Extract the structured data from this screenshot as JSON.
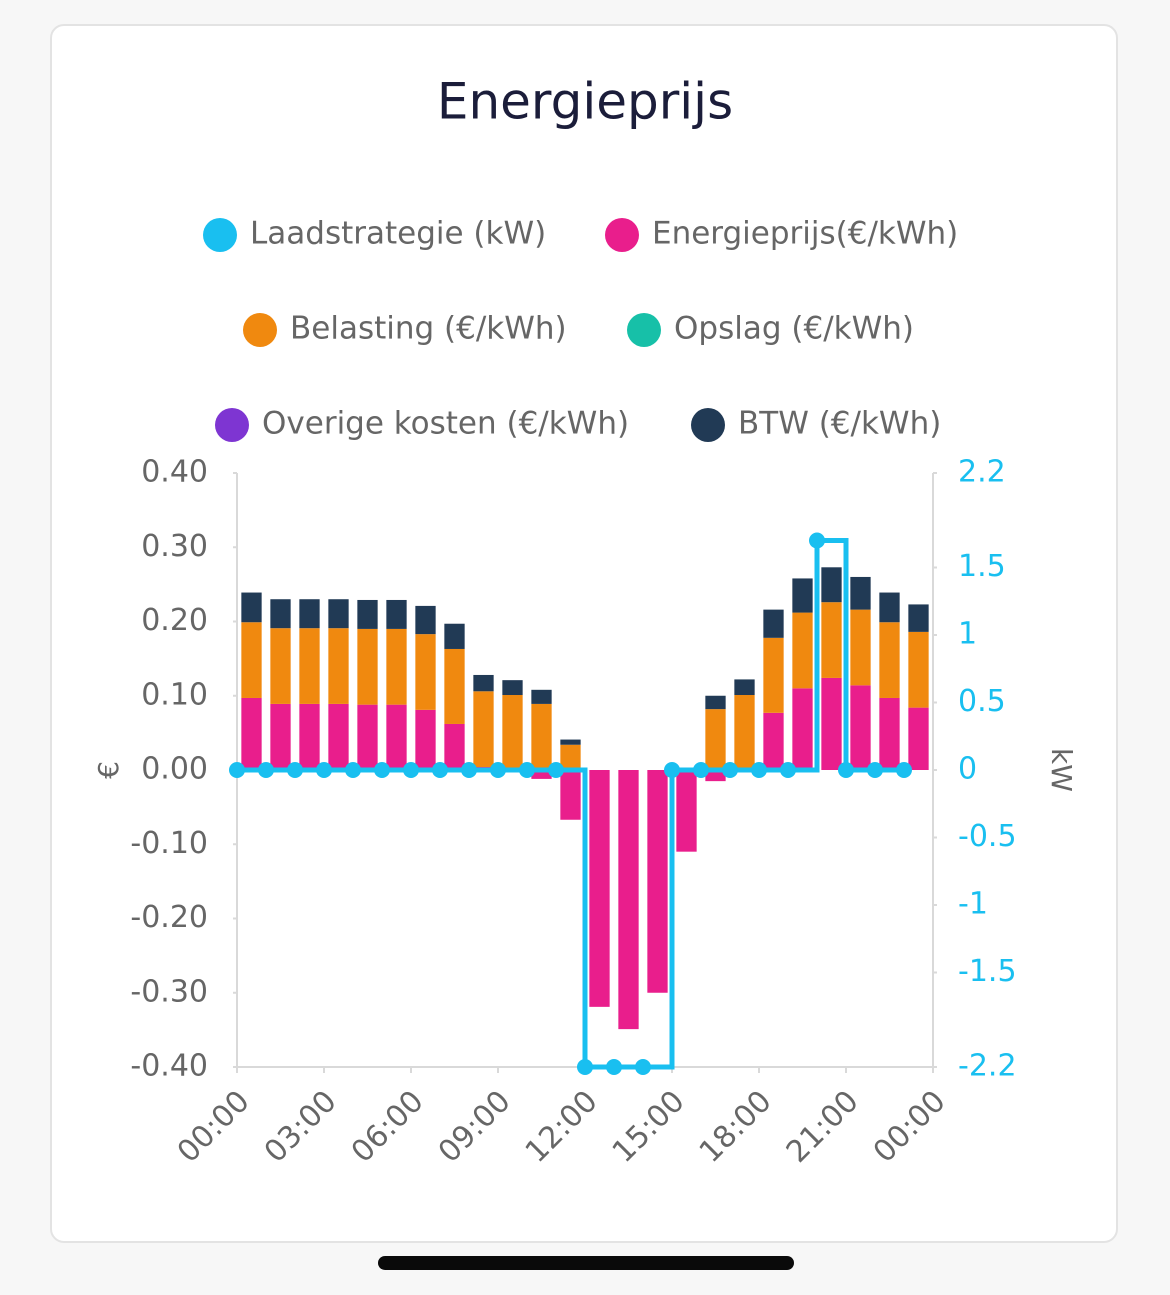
{
  "chart_data": {
    "type": "bar",
    "title": "Energieprijs",
    "ylabel": "€",
    "y2label": "kW",
    "x": [
      0,
      1,
      2,
      3,
      4,
      5,
      6,
      7,
      8,
      9,
      10,
      11,
      12,
      13,
      14,
      15,
      16,
      17,
      18,
      19,
      20,
      21,
      22,
      23
    ],
    "xlim": [
      0,
      24
    ],
    "xticks": [
      {
        "value": 0,
        "label": "00:00"
      },
      {
        "value": 3,
        "label": "03:00"
      },
      {
        "value": 6,
        "label": "06:00"
      },
      {
        "value": 9,
        "label": "09:00"
      },
      {
        "value": 12,
        "label": "12:00"
      },
      {
        "value": 15,
        "label": "15:00"
      },
      {
        "value": 18,
        "label": "18:00"
      },
      {
        "value": 21,
        "label": "21:00"
      },
      {
        "value": 24,
        "label": "00:00"
      }
    ],
    "ylim": [
      -0.4,
      0.4
    ],
    "yticks": [
      {
        "value": 0.4,
        "label": "0.40"
      },
      {
        "value": 0.3,
        "label": "0.30"
      },
      {
        "value": 0.2,
        "label": "0.20"
      },
      {
        "value": 0.1,
        "label": "0.10"
      },
      {
        "value": 0,
        "label": "0.00"
      },
      {
        "value": -0.1,
        "label": "-0.10"
      },
      {
        "value": -0.2,
        "label": "-0.20"
      },
      {
        "value": -0.3,
        "label": "-0.30"
      },
      {
        "value": -0.4,
        "label": "-0.40"
      }
    ],
    "y2lim": [
      -2.2,
      2.2
    ],
    "y2ticks": [
      2.2,
      1.5,
      1,
      0.5,
      0,
      -0.5,
      -1,
      -1.5,
      -2.2
    ],
    "grid": false,
    "stacked": true,
    "legend": "top",
    "series": [
      {
        "name": "Laadstrategie (kW)",
        "type": "line",
        "step": "post",
        "axis": "y2",
        "color": "#19bff0",
        "values": [
          0,
          0,
          0,
          0,
          0,
          0,
          0,
          0,
          0,
          0,
          0,
          0,
          -2.2,
          -2.2,
          -2.2,
          0,
          0,
          0,
          0,
          0,
          1.7,
          0,
          0,
          0
        ]
      },
      {
        "name": "Energieprijs(€/kWh)",
        "type": "bar",
        "color": "#e91e8c",
        "values": [
          0.097,
          0.089,
          0.089,
          0.089,
          0.088,
          0.088,
          0.081,
          0.062,
          0.004,
          0,
          -0.012,
          -0.067,
          -0.319,
          -0.349,
          -0.3,
          -0.11,
          -0.015,
          0,
          0.077,
          0.11,
          0.124,
          0.114,
          0.097,
          0.084
        ]
      },
      {
        "name": "Belasting (€/kWh)",
        "type": "bar",
        "color": "#f0890f",
        "values": [
          0.102,
          0.102,
          0.102,
          0.102,
          0.102,
          0.102,
          0.102,
          0.101,
          0.102,
          0.101,
          0.089,
          0.034,
          0,
          0,
          0,
          0,
          0.082,
          0.101,
          0.101,
          0.102,
          0.102,
          0.102,
          0.102,
          0.102
        ]
      },
      {
        "name": "Opslag (€/kWh)",
        "type": "bar",
        "color": "#17c0a8",
        "values": [
          0,
          0,
          0,
          0,
          0,
          0,
          0,
          0,
          0,
          0,
          0,
          0,
          0,
          0,
          0,
          0,
          0,
          0,
          0,
          0,
          0,
          0,
          0,
          0
        ]
      },
      {
        "name": "Overige kosten (€/kWh)",
        "type": "bar",
        "color": "#7e35d2",
        "values": [
          0,
          0,
          0,
          0,
          0,
          0,
          0,
          0,
          0,
          0,
          0,
          0,
          0,
          0,
          0,
          0,
          0,
          0,
          0,
          0,
          0,
          0,
          0,
          0
        ]
      },
      {
        "name": "BTW (€/kWh)",
        "type": "bar",
        "color": "#213a55",
        "values": [
          0.04,
          0.039,
          0.039,
          0.039,
          0.039,
          0.039,
          0.038,
          0.034,
          0.022,
          0.02,
          0.019,
          0.007,
          0,
          0,
          0,
          0,
          0.018,
          0.021,
          0.038,
          0.046,
          0.047,
          0.044,
          0.04,
          0.037
        ]
      }
    ]
  }
}
